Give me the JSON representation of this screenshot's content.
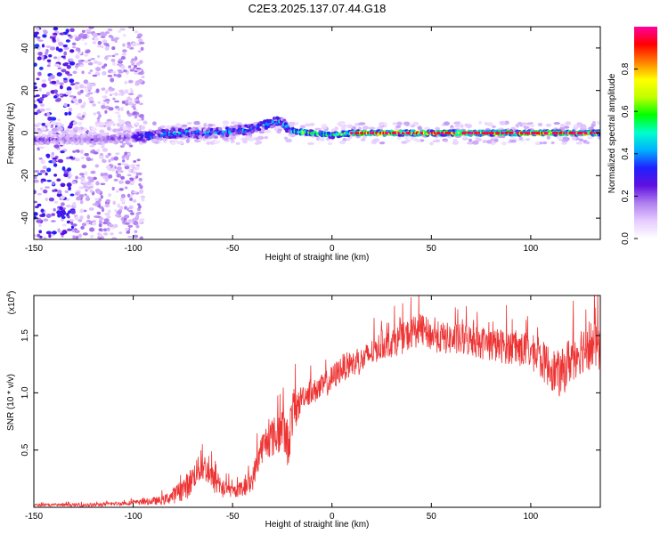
{
  "title": "C2E3.2025.137.07.44.G18",
  "chart_data": [
    {
      "type": "heatmap",
      "xlabel": "Height of straight line (km)",
      "ylabel": "Frequency (Hz)",
      "xlim": [
        -150,
        135
      ],
      "ylim": [
        -50,
        50
      ],
      "x_ticks": [
        -150,
        -100,
        -50,
        0,
        50,
        100
      ],
      "y_ticks": [
        -40,
        -20,
        0,
        20,
        40
      ],
      "colorbar": {
        "label": "Normalized spectral amplitude",
        "range": [
          0.0,
          1.0
        ],
        "ticks": [
          "0.0",
          "0.2",
          "0.4",
          "0.6",
          "0.8"
        ],
        "tick_values": [
          0.0,
          0.2,
          0.4,
          0.6,
          0.8
        ]
      },
      "colormap": [
        "#ffffff",
        "#e6ccff",
        "#b080f0",
        "#6010e0",
        "#2020ff",
        "#00b0ff",
        "#00ffcc",
        "#00ff00",
        "#c0ff00",
        "#ffff00",
        "#ff8000",
        "#ff0000",
        "#ff00a0"
      ]
    },
    {
      "type": "line",
      "xlabel": "Height of straight line (km)",
      "ylabel": "SNR (10 * v/v)",
      "y_multiplier": "(x10",
      "y_multiplier_exp": "4",
      "y_multiplier_close": ")",
      "xlim": [
        -150,
        135
      ],
      "ylim": [
        0,
        1.85
      ],
      "x_ticks": [
        -150,
        -100,
        -50,
        0,
        50,
        100
      ],
      "y_ticks": [
        0.5,
        1.0,
        1.5
      ],
      "y_tick_labels": [
        "0.5",
        "1.0",
        "1.5"
      ],
      "color": "#ee3333",
      "profile": {
        "x": [
          -150,
          -120,
          -100,
          -85,
          -78,
          -72,
          -68,
          -64,
          -60,
          -55,
          -50,
          -45,
          -40,
          -36,
          -32,
          -28,
          -25,
          -22,
          -20,
          -17,
          -15,
          -10,
          -5,
          0,
          5,
          10,
          15,
          20,
          25,
          30,
          35,
          40,
          45,
          50,
          55,
          60,
          65,
          70,
          80,
          90,
          100,
          110,
          115,
          120,
          125,
          130,
          135
        ],
        "y": [
          0.02,
          0.02,
          0.04,
          0.06,
          0.12,
          0.2,
          0.32,
          0.35,
          0.24,
          0.16,
          0.14,
          0.16,
          0.24,
          0.5,
          0.6,
          0.62,
          0.7,
          0.55,
          0.82,
          0.88,
          0.98,
          1.0,
          1.05,
          1.12,
          1.22,
          1.25,
          1.28,
          1.35,
          1.42,
          1.44,
          1.47,
          1.52,
          1.55,
          1.5,
          1.48,
          1.47,
          1.46,
          1.46,
          1.42,
          1.4,
          1.36,
          1.22,
          1.15,
          1.3,
          1.38,
          1.42,
          1.4
        ]
      },
      "noise_amplitude": {
        "x": [
          -150,
          -100,
          -85,
          -72,
          -60,
          -50,
          -40,
          -30,
          -20,
          -15,
          0,
          20,
          40,
          60,
          100,
          120,
          135
        ],
        "y": [
          0.01,
          0.02,
          0.04,
          0.12,
          0.12,
          0.05,
          0.1,
          0.18,
          0.22,
          0.1,
          0.12,
          0.12,
          0.14,
          0.14,
          0.16,
          0.22,
          0.22
        ]
      }
    }
  ]
}
